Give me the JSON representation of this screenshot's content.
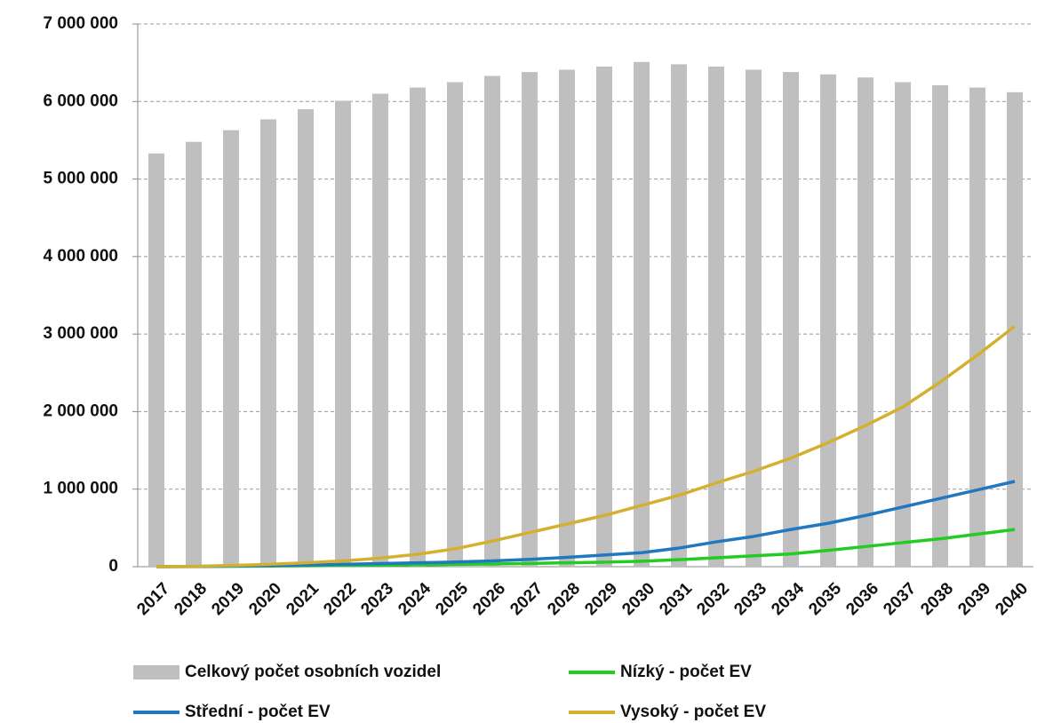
{
  "chart_data": {
    "type": "bar",
    "categories": [
      "2017",
      "2018",
      "2019",
      "2020",
      "2021",
      "2022",
      "2023",
      "2024",
      "2025",
      "2026",
      "2027",
      "2028",
      "2029",
      "2030",
      "2031",
      "2032",
      "2033",
      "2034",
      "2035",
      "2036",
      "2037",
      "2038",
      "2039",
      "2040"
    ],
    "series": [
      {
        "name": "Celkový počet osobních vozidel",
        "type": "bar",
        "color": "#bfbfbf",
        "values": [
          5330000,
          5480000,
          5630000,
          5770000,
          5900000,
          6010000,
          6100000,
          6180000,
          6250000,
          6330000,
          6380000,
          6410000,
          6450000,
          6510000,
          6480000,
          6450000,
          6410000,
          6380000,
          6350000,
          6310000,
          6250000,
          6210000,
          6180000,
          6120000
        ]
      },
      {
        "name": "Nízký - počet EV",
        "type": "line",
        "color": "#22cc22",
        "values": [
          0,
          2000,
          5000,
          8000,
          12000,
          16000,
          20000,
          25000,
          30000,
          35000,
          42000,
          50000,
          58000,
          70000,
          90000,
          115000,
          140000,
          165000,
          210000,
          260000,
          310000,
          360000,
          420000,
          480000
        ]
      },
      {
        "name": "Střední - počet EV",
        "type": "line",
        "color": "#1f78c0",
        "values": [
          0,
          3000,
          8000,
          15000,
          22000,
          30000,
          40000,
          50000,
          60000,
          75000,
          95000,
          120000,
          150000,
          180000,
          240000,
          320000,
          390000,
          480000,
          560000,
          660000,
          770000,
          880000,
          990000,
          1100000
        ]
      },
      {
        "name": "Vysoký - počet EV",
        "type": "line",
        "color": "#d4b030",
        "values": [
          0,
          5000,
          15000,
          30000,
          50000,
          75000,
          110000,
          160000,
          230000,
          330000,
          440000,
          550000,
          660000,
          790000,
          920000,
          1080000,
          1230000,
          1400000,
          1600000,
          1820000,
          2060000,
          2380000,
          2730000,
          3100000
        ]
      }
    ],
    "ylim": [
      0,
      7000000
    ],
    "yticks": [
      0,
      {
        "value": 1000000,
        "label": "1 000 000"
      },
      {
        "value": 2000000,
        "label": "2 000 000"
      },
      {
        "value": 3000000,
        "label": "3 000 000"
      },
      {
        "value": 4000000,
        "label": "4 000 000"
      },
      {
        "value": 5000000,
        "label": "5 000 000"
      },
      {
        "value": 6000000,
        "label": "6 000 000"
      },
      {
        "value": 7000000,
        "label": "7 000 000"
      }
    ],
    "grid": true,
    "legend": "bottom"
  }
}
